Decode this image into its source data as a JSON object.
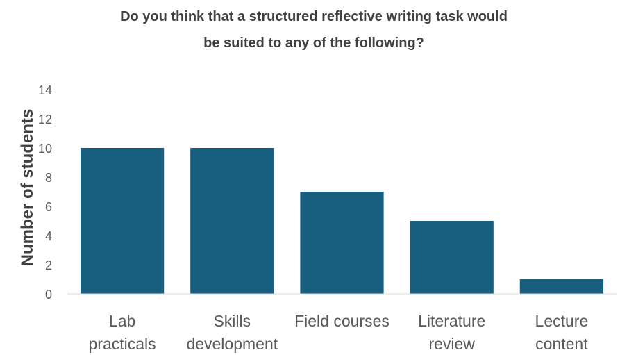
{
  "chart_data": {
    "type": "bar",
    "title_lines": [
      "Do you think that a structured reflective writing task would",
      "be suited to any of the following?"
    ],
    "xlabel": "",
    "ylabel": "Number of students",
    "ylim": [
      0,
      14
    ],
    "yticks": [
      "0",
      "2",
      "4",
      "6",
      "8",
      "10",
      "12",
      "14"
    ],
    "categories": [
      [
        "Lab",
        "practicals"
      ],
      [
        "Skills",
        "development"
      ],
      [
        "Field courses"
      ],
      [
        "Literature",
        "review"
      ],
      [
        "Lecture",
        "content"
      ]
    ],
    "values": [
      10,
      10,
      7,
      5,
      1
    ],
    "grid": false,
    "legend": "none",
    "bar_color": "#175E7F"
  }
}
